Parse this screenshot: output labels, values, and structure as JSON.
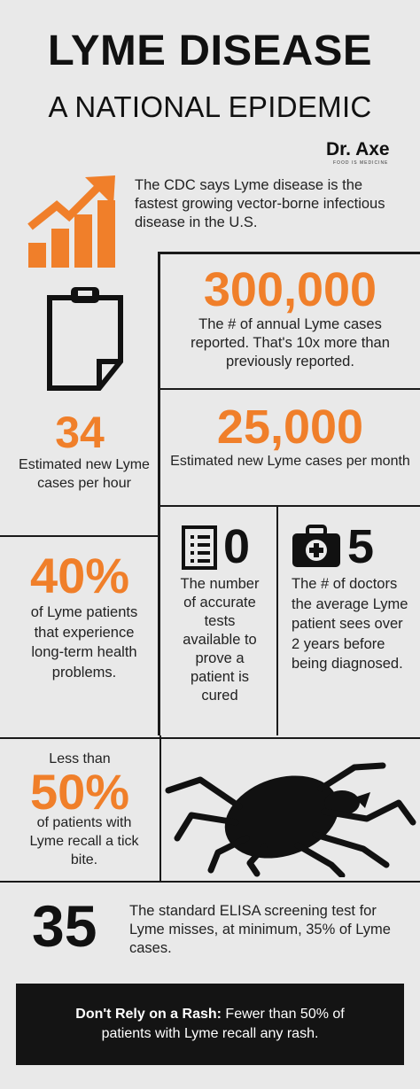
{
  "header": {
    "title": "LYME DISEASE",
    "subtitle": "A NATIONAL EPIDEMIC",
    "brand": "Dr. Axe",
    "brand_tagline": "FOOD IS MEDICINE"
  },
  "intro": "The CDC says Lyme disease is the fastest growing vector-borne infectious disease in the U.S.",
  "stats": {
    "annual": {
      "value": "300,000",
      "text": "The # of annual Lyme cases reported. That's 10x more than previously reported."
    },
    "hourly": {
      "value": "34",
      "text": "Estimated new Lyme cases per hour"
    },
    "monthly": {
      "value": "25,000",
      "text": "Estimated new Lyme cases per month"
    },
    "tests": {
      "value": "0",
      "text": "The number of accurate tests available to prove a patient is cured"
    },
    "doctors": {
      "value": "5",
      "text": "The # of doctors the average Lyme patient sees over 2 years before being diagnosed."
    },
    "longterm": {
      "value": "40%",
      "text": "of Lyme patients that experience long-term health problems."
    },
    "tickbite": {
      "prefix": "Less than",
      "value": "50%",
      "text": "of patients with Lyme recall a tick bite."
    },
    "elisa": {
      "value": "35",
      "text": "The standard ELISA screening test for Lyme misses, at minimum, 35% of Lyme cases."
    }
  },
  "footer": {
    "bold": "Don't Rely on a Rash:",
    "text": " Fewer than 50% of patients with Lyme recall any rash."
  },
  "colors": {
    "accent": "#f07f2a",
    "dark": "#141414",
    "background": "#e9e9e9"
  },
  "icons": [
    "growth-chart-icon",
    "clipboard-icon",
    "document-list-icon",
    "medical-kit-icon",
    "tick-silhouette-icon"
  ]
}
